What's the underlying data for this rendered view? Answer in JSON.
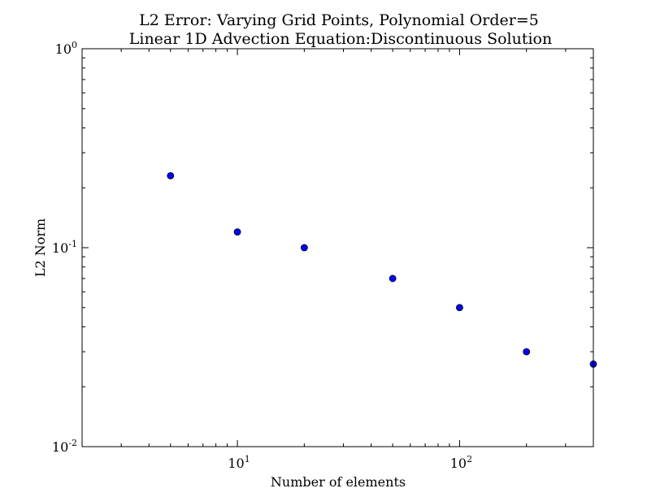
{
  "chart_data": {
    "type": "scatter",
    "title_line1": "L2 Error: Varying Grid Points,  Polynomial Order=5",
    "title_line2": "Linear 1D Advection Equation:Discontinuous Solution",
    "xlabel": "Number of elements",
    "ylabel": "L2 Norm",
    "xscale": "log",
    "yscale": "log",
    "xlim": [
      2,
      400
    ],
    "ylim": [
      0.01,
      1
    ],
    "grid": false,
    "marker_color": "#0000ff",
    "x_ticks": [
      {
        "value": 10,
        "base": "10",
        "exp": "1"
      },
      {
        "value": 100,
        "base": "10",
        "exp": "2"
      }
    ],
    "y_ticks": [
      {
        "value": 1,
        "base": "10",
        "exp": "0"
      },
      {
        "value": 0.1,
        "base": "10",
        "exp": "-1"
      },
      {
        "value": 0.01,
        "base": "10",
        "exp": "-2"
      }
    ],
    "points": [
      {
        "x": 5,
        "y": 0.23
      },
      {
        "x": 10,
        "y": 0.12
      },
      {
        "x": 20,
        "y": 0.1
      },
      {
        "x": 50,
        "y": 0.07
      },
      {
        "x": 100,
        "y": 0.05
      },
      {
        "x": 200,
        "y": 0.03
      },
      {
        "x": 400,
        "y": 0.026
      }
    ]
  }
}
